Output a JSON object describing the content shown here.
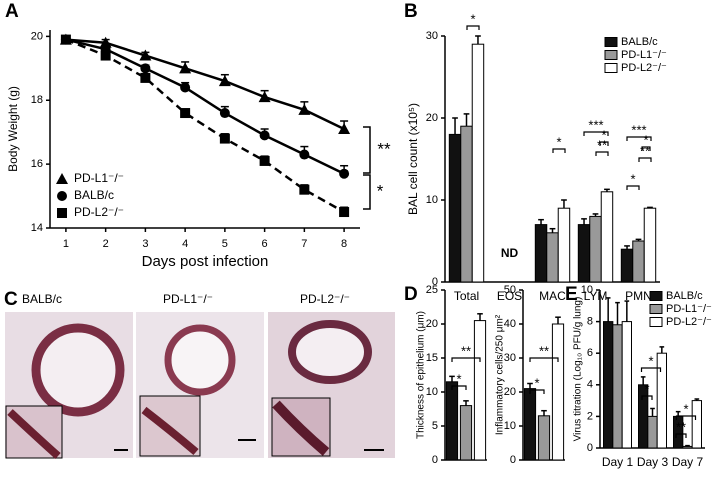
{
  "chart_data": [
    {
      "type": "line",
      "label": "A",
      "x": [
        1,
        2,
        3,
        4,
        5,
        6,
        7,
        8
      ],
      "xlim": [
        0.6,
        8.4
      ],
      "xticks": [
        1,
        2,
        3,
        4,
        5,
        6,
        7,
        8
      ],
      "xlabel": "Days post infection",
      "ylabel": "Body Weight (g)",
      "ylim": [
        14,
        20.2
      ],
      "yticks": [
        14,
        16,
        18,
        20
      ],
      "legend": "lower left",
      "series": [
        {
          "name": "PD-L1⁻/⁻",
          "color": "#000000",
          "marker": "triangle",
          "dashed": false,
          "values": [
            19.9,
            19.8,
            19.4,
            19.0,
            18.6,
            18.1,
            17.7,
            17.1
          ],
          "errors": [
            0.1,
            0.1,
            0.1,
            0.2,
            0.2,
            0.2,
            0.25,
            0.25
          ]
        },
        {
          "name": "BALB/c",
          "color": "#000000",
          "marker": "circle",
          "dashed": false,
          "values": [
            19.9,
            19.6,
            19.0,
            18.4,
            17.6,
            16.9,
            16.3,
            15.7
          ],
          "errors": [
            0.1,
            0.1,
            0.1,
            0.15,
            0.2,
            0.2,
            0.25,
            0.25
          ]
        },
        {
          "name": "PD-L2⁻/⁻",
          "color": "#000000",
          "marker": "square",
          "dashed": true,
          "values": [
            19.9,
            19.4,
            18.7,
            17.6,
            16.8,
            16.1,
            15.2,
            14.5
          ],
          "errors": [
            0.1,
            0.1,
            0.1,
            0.1,
            0.15,
            0.15,
            0.15,
            0.15
          ]
        }
      ],
      "annotations": [
        "**",
        "*"
      ]
    },
    {
      "type": "bar",
      "label": "B",
      "categories": [
        "Total",
        "EOS",
        "MAC",
        "LYM",
        "PMN"
      ],
      "ylabel": "BAL cell count (x10⁵)",
      "ylim": [
        0,
        30
      ],
      "yticks": [
        0,
        10,
        20,
        30
      ],
      "legend": "upper right",
      "series": [
        {
          "name": "BALB/c",
          "color": "#111111",
          "values": [
            18,
            null,
            7,
            7,
            4
          ],
          "errors": [
            2,
            null,
            0.6,
            0.7,
            0.4
          ]
        },
        {
          "name": "PD-L1⁻/⁻",
          "color": "#999999",
          "values": [
            19,
            null,
            6,
            8,
            5
          ],
          "errors": [
            1.5,
            null,
            0.5,
            0.3,
            0.2
          ]
        },
        {
          "name": "PD-L2⁻/⁻",
          "color": "#ffffff",
          "values": [
            29,
            null,
            9,
            11,
            9
          ],
          "errors": [
            1,
            null,
            1,
            0.3,
            0.1
          ]
        }
      ],
      "missing_label": "ND",
      "annotations": [
        "*",
        "*",
        "***",
        "*",
        "**",
        "***",
        "*",
        "**",
        "*"
      ]
    },
    {
      "type": "bar",
      "label": "D",
      "ylabel": "Thickness of epithelium (μm)",
      "ylim": [
        0,
        25
      ],
      "yticks": [
        0,
        5,
        10,
        15,
        20,
        25
      ],
      "values": [
        11.5,
        8,
        20.5
      ],
      "errors": [
        0.8,
        0.7,
        1
      ],
      "colors": [
        "#111111",
        "#999999",
        "#ffffff"
      ],
      "annotations": [
        "*",
        "**"
      ]
    },
    {
      "type": "bar",
      "ylabel": "Inflammatory cells/250 μm²",
      "ylim": [
        0,
        50
      ],
      "yticks": [
        0,
        10,
        20,
        30,
        40,
        50
      ],
      "values": [
        21,
        13,
        40
      ],
      "errors": [
        1.5,
        1.5,
        2
      ],
      "colors": [
        "#111111",
        "#999999",
        "#ffffff"
      ],
      "annotations": [
        "*",
        "**"
      ]
    },
    {
      "type": "bar",
      "label": "E",
      "categories": [
        "Day 1",
        "Day 3",
        "Day 7"
      ],
      "ylabel": "Virus titration (Log₁₀ PFU/g lung)",
      "ylim": [
        0,
        10
      ],
      "yticks": [
        0,
        2,
        4,
        6,
        8,
        10
      ],
      "legend": "upper right",
      "series": [
        {
          "name": "BALB/c",
          "color": "#111111",
          "values": [
            8,
            4,
            2
          ],
          "errors": [
            1.5,
            0.5,
            0.3
          ]
        },
        {
          "name": "PD-L1⁻/⁻",
          "color": "#999999",
          "values": [
            7.8,
            2,
            0.1
          ],
          "errors": [
            1.4,
            0.5,
            0.05
          ]
        },
        {
          "name": "PD-L2⁻/⁻",
          "color": "#ffffff",
          "values": [
            8,
            6,
            3
          ],
          "errors": [
            1.3,
            0.4,
            0.1
          ]
        }
      ],
      "annotations": [
        "*",
        "*",
        "**",
        "*"
      ]
    }
  ],
  "histology": {
    "label": "C",
    "captions": [
      "BALB/c",
      "PD-L1⁻/⁻",
      "PD-L2⁻/⁻"
    ]
  }
}
